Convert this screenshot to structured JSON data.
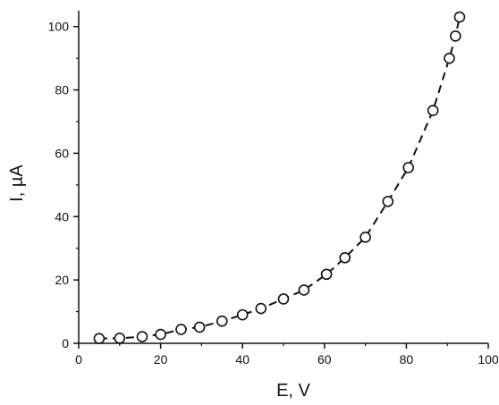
{
  "chart_data": {
    "type": "scatter",
    "title": "",
    "xlabel": "E, V",
    "ylabel": "I, µA",
    "xlim": [
      0,
      100
    ],
    "ylim": [
      0,
      105
    ],
    "x_ticks": [
      0,
      20,
      40,
      60,
      80,
      100
    ],
    "y_ticks": [
      0,
      20,
      40,
      60,
      80,
      100
    ],
    "x_tick_labels": [
      "0",
      "20",
      "40",
      "60",
      "80",
      "100"
    ],
    "y_tick_labels": [
      "0",
      "20",
      "40",
      "60",
      "80",
      "100"
    ],
    "grid": false,
    "series": [
      {
        "marker": "open-circle",
        "line_style": "dashed",
        "color": "#111111",
        "points": [
          {
            "x": 5,
            "y": 1.5
          },
          {
            "x": 10,
            "y": 1.6
          },
          {
            "x": 15.5,
            "y": 2.1
          },
          {
            "x": 20,
            "y": 2.8
          },
          {
            "x": 25,
            "y": 4.4
          },
          {
            "x": 29.5,
            "y": 5.1
          },
          {
            "x": 35,
            "y": 7.0
          },
          {
            "x": 40,
            "y": 9.0
          },
          {
            "x": 44.5,
            "y": 11.0
          },
          {
            "x": 50,
            "y": 14.0
          },
          {
            "x": 55,
            "y": 16.8
          },
          {
            "x": 60.5,
            "y": 21.8
          },
          {
            "x": 65,
            "y": 27.0
          },
          {
            "x": 70,
            "y": 33.5
          },
          {
            "x": 75.5,
            "y": 44.8
          },
          {
            "x": 80.5,
            "y": 55.5
          },
          {
            "x": 86.5,
            "y": 73.5
          },
          {
            "x": 90.5,
            "y": 90.0
          },
          {
            "x": 92,
            "y": 97.0
          },
          {
            "x": 93,
            "y": 103.0
          }
        ]
      }
    ]
  }
}
